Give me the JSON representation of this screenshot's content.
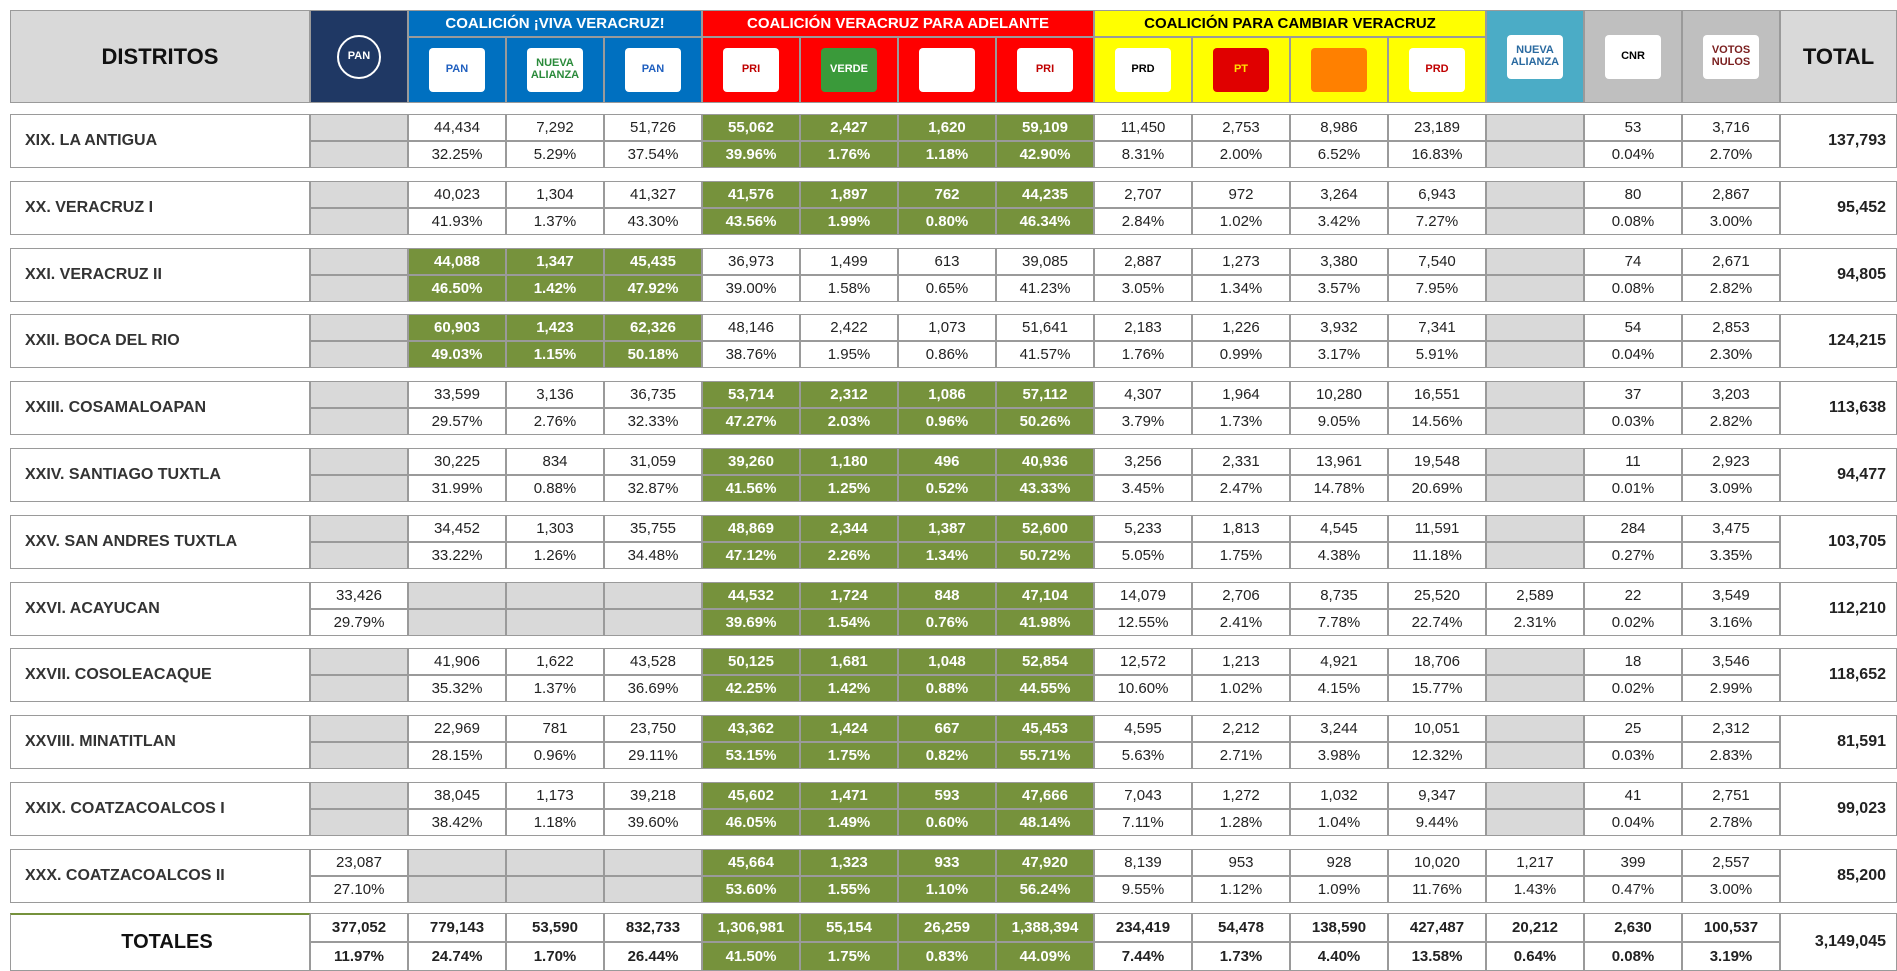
{
  "header": {
    "districts": "DISTRITOS",
    "total": "TOTAL",
    "groups": [
      "COALICIÓN ¡VIVA VERACRUZ!",
      "COALICIÓN VERACRUZ PARA ADELANTE",
      "COALICIÓN PARA CAMBIAR VERACRUZ"
    ],
    "logos": [
      "PAN",
      "PAN",
      "NUEVA ALIANZA",
      "PAN",
      "PRI",
      "VERDE",
      null,
      "PRI",
      "PRD",
      "PT",
      null,
      "PRD",
      "NUEVA ALIANZA",
      "CNR",
      "VOTOS NULOS"
    ]
  },
  "rows": [
    {
      "name": "XIX. LA ANTIGUA",
      "highlight": 1,
      "total": "137,793",
      "votes": [
        null,
        "44,434",
        "7,292",
        "51,726",
        "55,062",
        "2,427",
        "1,620",
        "59,109",
        "11,450",
        "2,753",
        "8,986",
        "23,189",
        null,
        "53",
        "3,716"
      ],
      "pct": [
        null,
        "32.25%",
        "5.29%",
        "37.54%",
        "39.96%",
        "1.76%",
        "1.18%",
        "42.90%",
        "8.31%",
        "2.00%",
        "6.52%",
        "16.83%",
        null,
        "0.04%",
        "2.70%"
      ]
    },
    {
      "name": "XX. VERACRUZ I",
      "highlight": 1,
      "total": "95,452",
      "votes": [
        null,
        "40,023",
        "1,304",
        "41,327",
        "41,576",
        "1,897",
        "762",
        "44,235",
        "2,707",
        "972",
        "3,264",
        "6,943",
        null,
        "80",
        "2,867"
      ],
      "pct": [
        null,
        "41.93%",
        "1.37%",
        "43.30%",
        "43.56%",
        "1.99%",
        "0.80%",
        "46.34%",
        "2.84%",
        "1.02%",
        "3.42%",
        "7.27%",
        null,
        "0.08%",
        "3.00%"
      ]
    },
    {
      "name": "XXI. VERACRUZ II",
      "highlight": 0,
      "total": "94,805",
      "votes": [
        null,
        "44,088",
        "1,347",
        "45,435",
        "36,973",
        "1,499",
        "613",
        "39,085",
        "2,887",
        "1,273",
        "3,380",
        "7,540",
        null,
        "74",
        "2,671"
      ],
      "pct": [
        null,
        "46.50%",
        "1.42%",
        "47.92%",
        "39.00%",
        "1.58%",
        "0.65%",
        "41.23%",
        "3.05%",
        "1.34%",
        "3.57%",
        "7.95%",
        null,
        "0.08%",
        "2.82%"
      ]
    },
    {
      "name": "XXII. BOCA DEL RIO",
      "highlight": 0,
      "total": "124,215",
      "votes": [
        null,
        "60,903",
        "1,423",
        "62,326",
        "48,146",
        "2,422",
        "1,073",
        "51,641",
        "2,183",
        "1,226",
        "3,932",
        "7,341",
        null,
        "54",
        "2,853"
      ],
      "pct": [
        null,
        "49.03%",
        "1.15%",
        "50.18%",
        "38.76%",
        "1.95%",
        "0.86%",
        "41.57%",
        "1.76%",
        "0.99%",
        "3.17%",
        "5.91%",
        null,
        "0.04%",
        "2.30%"
      ]
    },
    {
      "name": "XXIII. COSAMALOAPAN",
      "highlight": 1,
      "total": "113,638",
      "votes": [
        null,
        "33,599",
        "3,136",
        "36,735",
        "53,714",
        "2,312",
        "1,086",
        "57,112",
        "4,307",
        "1,964",
        "10,280",
        "16,551",
        null,
        "37",
        "3,203"
      ],
      "pct": [
        null,
        "29.57%",
        "2.76%",
        "32.33%",
        "47.27%",
        "2.03%",
        "0.96%",
        "50.26%",
        "3.79%",
        "1.73%",
        "9.05%",
        "14.56%",
        null,
        "0.03%",
        "2.82%"
      ]
    },
    {
      "name": "XXIV. SANTIAGO TUXTLA",
      "highlight": 1,
      "total": "94,477",
      "votes": [
        null,
        "30,225",
        "834",
        "31,059",
        "39,260",
        "1,180",
        "496",
        "40,936",
        "3,256",
        "2,331",
        "13,961",
        "19,548",
        null,
        "11",
        "2,923"
      ],
      "pct": [
        null,
        "31.99%",
        "0.88%",
        "32.87%",
        "41.56%",
        "1.25%",
        "0.52%",
        "43.33%",
        "3.45%",
        "2.47%",
        "14.78%",
        "20.69%",
        null,
        "0.01%",
        "3.09%"
      ]
    },
    {
      "name": "XXV. SAN ANDRES TUXTLA",
      "highlight": 1,
      "total": "103,705",
      "votes": [
        null,
        "34,452",
        "1,303",
        "35,755",
        "48,869",
        "2,344",
        "1,387",
        "52,600",
        "5,233",
        "1,813",
        "4,545",
        "11,591",
        null,
        "284",
        "3,475"
      ],
      "pct": [
        null,
        "33.22%",
        "1.26%",
        "34.48%",
        "47.12%",
        "2.26%",
        "1.34%",
        "50.72%",
        "5.05%",
        "1.75%",
        "4.38%",
        "11.18%",
        null,
        "0.27%",
        "3.35%"
      ]
    },
    {
      "name": "XXVI. ACAYUCAN",
      "highlight": 1,
      "total": "112,210",
      "votes": [
        "33,426",
        null,
        null,
        null,
        "44,532",
        "1,724",
        "848",
        "47,104",
        "14,079",
        "2,706",
        "8,735",
        "25,520",
        "2,589",
        "22",
        "3,549"
      ],
      "pct": [
        "29.79%",
        null,
        null,
        null,
        "39.69%",
        "1.54%",
        "0.76%",
        "41.98%",
        "12.55%",
        "2.41%",
        "7.78%",
        "22.74%",
        "2.31%",
        "0.02%",
        "3.16%"
      ]
    },
    {
      "name": "XXVII. COSOLEACAQUE",
      "highlight": 1,
      "total": "118,652",
      "votes": [
        null,
        "41,906",
        "1,622",
        "43,528",
        "50,125",
        "1,681",
        "1,048",
        "52,854",
        "12,572",
        "1,213",
        "4,921",
        "18,706",
        null,
        "18",
        "3,546"
      ],
      "pct": [
        null,
        "35.32%",
        "1.37%",
        "36.69%",
        "42.25%",
        "1.42%",
        "0.88%",
        "44.55%",
        "10.60%",
        "1.02%",
        "4.15%",
        "15.77%",
        null,
        "0.02%",
        "2.99%"
      ]
    },
    {
      "name": "XXVIII. MINATITLAN",
      "highlight": 1,
      "total": "81,591",
      "votes": [
        null,
        "22,969",
        "781",
        "23,750",
        "43,362",
        "1,424",
        "667",
        "45,453",
        "4,595",
        "2,212",
        "3,244",
        "10,051",
        null,
        "25",
        "2,312"
      ],
      "pct": [
        null,
        "28.15%",
        "0.96%",
        "29.11%",
        "53.15%",
        "1.75%",
        "0.82%",
        "55.71%",
        "5.63%",
        "2.71%",
        "3.98%",
        "12.32%",
        null,
        "0.03%",
        "2.83%"
      ]
    },
    {
      "name": "XXIX. COATZACOALCOS I",
      "highlight": 1,
      "total": "99,023",
      "votes": [
        null,
        "38,045",
        "1,173",
        "39,218",
        "45,602",
        "1,471",
        "593",
        "47,666",
        "7,043",
        "1,272",
        "1,032",
        "9,347",
        null,
        "41",
        "2,751"
      ],
      "pct": [
        null,
        "38.42%",
        "1.18%",
        "39.60%",
        "46.05%",
        "1.49%",
        "0.60%",
        "48.14%",
        "7.11%",
        "1.28%",
        "1.04%",
        "9.44%",
        null,
        "0.04%",
        "2.78%"
      ]
    },
    {
      "name": "XXX. COATZACOALCOS II",
      "highlight": 1,
      "total": "85,200",
      "votes": [
        "23,087",
        null,
        null,
        null,
        "45,664",
        "1,323",
        "933",
        "47,920",
        "8,139",
        "953",
        "928",
        "10,020",
        "1,217",
        "399",
        "2,557"
      ],
      "pct": [
        "27.10%",
        null,
        null,
        null,
        "53.60%",
        "1.55%",
        "1.10%",
        "56.24%",
        "9.55%",
        "1.12%",
        "1.09%",
        "11.76%",
        "1.43%",
        "0.47%",
        "3.00%"
      ]
    }
  ],
  "totals": {
    "name": "TOTALES",
    "highlight": 1,
    "total": "3,149,045",
    "votes": [
      "377,052",
      "779,143",
      "53,590",
      "832,733",
      "1,306,981",
      "55,154",
      "26,259",
      "1,388,394",
      "234,419",
      "54,478",
      "138,590",
      "427,487",
      "20,212",
      "2,630",
      "100,537"
    ],
    "pct": [
      "11.97%",
      "24.74%",
      "1.70%",
      "26.44%",
      "41.50%",
      "1.75%",
      "0.83%",
      "44.09%",
      "7.44%",
      "1.73%",
      "4.40%",
      "13.58%",
      "0.64%",
      "0.08%",
      "3.19%"
    ]
  }
}
